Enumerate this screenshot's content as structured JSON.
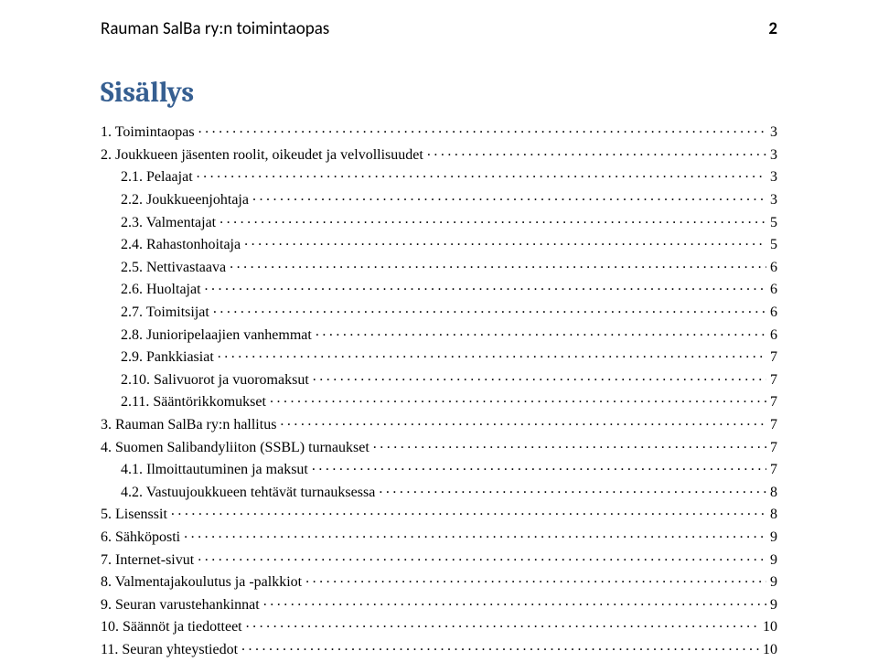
{
  "header": {
    "title": "Rauman SalBa ry:n toimintaopas",
    "page_number": "2"
  },
  "contents_heading": "Sisällys",
  "colors": {
    "heading": "#365f91",
    "text": "#000000",
    "background": "#ffffff"
  },
  "typography": {
    "heading_font": "Cambria",
    "heading_size_pt": 24,
    "header_font": "Calibri",
    "header_size_pt": 14,
    "body_font": "Times New Roman",
    "body_size_pt": 12
  },
  "toc": [
    {
      "level": 1,
      "label": "1. Toimintaopas",
      "page": "3"
    },
    {
      "level": 1,
      "label": "2. Joukkueen jäsenten roolit, oikeudet ja velvollisuudet",
      "page": "3"
    },
    {
      "level": 2,
      "label": "2.1. Pelaajat",
      "page": "3"
    },
    {
      "level": 2,
      "label": "2.2. Joukkueenjohtaja",
      "page": "3"
    },
    {
      "level": 2,
      "label": "2.3. Valmentajat",
      "page": "5"
    },
    {
      "level": 2,
      "label": "2.4. Rahastonhoitaja",
      "page": "5"
    },
    {
      "level": 2,
      "label": "2.5. Nettivastaava",
      "page": "6"
    },
    {
      "level": 2,
      "label": "2.6. Huoltajat",
      "page": "6"
    },
    {
      "level": 2,
      "label": "2.7. Toimitsijat",
      "page": "6"
    },
    {
      "level": 2,
      "label": "2.8. Junioripelaajien vanhemmat",
      "page": "6"
    },
    {
      "level": 2,
      "label": "2.9. Pankkiasiat",
      "page": "7"
    },
    {
      "level": 2,
      "label": "2.10. Salivuorot ja vuoromaksut",
      "page": "7"
    },
    {
      "level": 2,
      "label": "2.11. Sääntörikkomukset",
      "page": "7"
    },
    {
      "level": 1,
      "label": "3. Rauman SalBa ry:n hallitus",
      "page": "7"
    },
    {
      "level": 1,
      "label": "4. Suomen Salibandyliiton (SSBL) turnaukset",
      "page": "7"
    },
    {
      "level": 2,
      "label": "4.1. Ilmoittautuminen ja maksut",
      "page": "7"
    },
    {
      "level": 2,
      "label": "4.2. Vastuujoukkueen tehtävät turnauksessa",
      "page": "8"
    },
    {
      "level": 1,
      "label": "5. Lisenssit",
      "page": "8"
    },
    {
      "level": 1,
      "label": "6. Sähköposti",
      "page": "9"
    },
    {
      "level": 1,
      "label": "7. Internet-sivut",
      "page": "9"
    },
    {
      "level": 1,
      "label": "8. Valmentajakoulutus ja -palkkiot",
      "page": "9"
    },
    {
      "level": 1,
      "label": "9. Seuran varustehankinnat",
      "page": "9"
    },
    {
      "level": 1,
      "label": "10. Säännöt ja tiedotteet",
      "page": "10"
    },
    {
      "level": 1,
      "label": "11. Seuran yhteystiedot",
      "page": "10"
    }
  ]
}
